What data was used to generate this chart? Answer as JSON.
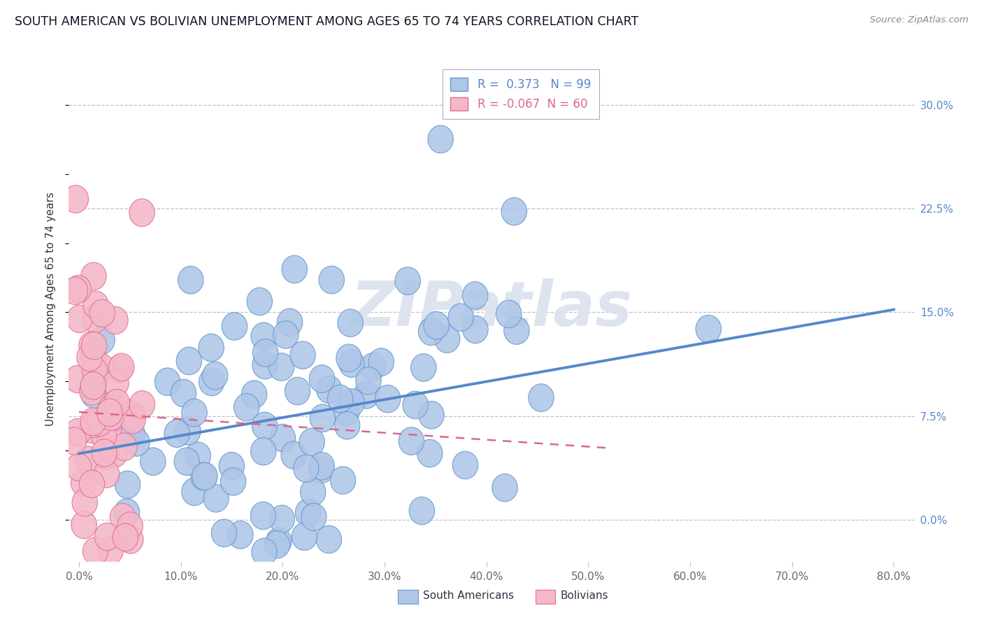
{
  "title": "SOUTH AMERICAN VS BOLIVIAN UNEMPLOYMENT AMONG AGES 65 TO 74 YEARS CORRELATION CHART",
  "source": "Source: ZipAtlas.com",
  "ylabel": "Unemployment Among Ages 65 to 74 years",
  "xlim": [
    -0.01,
    0.82
  ],
  "ylim": [
    -0.03,
    0.335
  ],
  "xticks": [
    0.0,
    0.1,
    0.2,
    0.3,
    0.4,
    0.5,
    0.6,
    0.7,
    0.8
  ],
  "xticklabels": [
    "0.0%",
    "10.0%",
    "20.0%",
    "30.0%",
    "40.0%",
    "50.0%",
    "60.0%",
    "70.0%",
    "80.0%"
  ],
  "ytick_positions": [
    0.0,
    0.075,
    0.15,
    0.225,
    0.3
  ],
  "ytick_labels_right": [
    "0.0%",
    "7.5%",
    "15.0%",
    "22.5%",
    "30.0%"
  ],
  "r_south": 0.373,
  "n_south": 99,
  "r_bolivia": -0.067,
  "n_bolivia": 60,
  "blue_color": "#aec6e8",
  "pink_color": "#f4b8c8",
  "blue_edge": "#6699cc",
  "pink_edge": "#e07090",
  "trend_blue": "#5588cc",
  "trend_pink": "#dd6688",
  "background_color": "#ffffff",
  "grid_color": "#c0c0d0",
  "watermark_color": "#dde4f0",
  "title_fontsize": 12.5,
  "label_fontsize": 11,
  "tick_fontsize": 11,
  "legend_fontsize": 12,
  "blue_trend_x0": 0.0,
  "blue_trend_y0": 0.048,
  "blue_trend_x1": 0.8,
  "blue_trend_y1": 0.152,
  "pink_trend_x0": 0.0,
  "pink_trend_y0": 0.078,
  "pink_trend_x1": 0.52,
  "pink_trend_y1": 0.052
}
